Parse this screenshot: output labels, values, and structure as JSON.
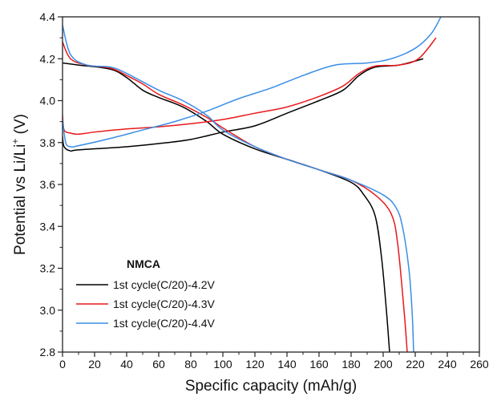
{
  "chart_data": {
    "type": "line",
    "title": "",
    "xlabel": "Specific capacity (mAh/g)",
    "ylabel_main": "Potential vs Li/Li",
    "ylabel_sup": "+",
    "ylabel_unit": " (V)",
    "xlim": [
      0,
      260
    ],
    "ylim": [
      2.8,
      4.4
    ],
    "xticks": [
      0,
      20,
      40,
      60,
      80,
      100,
      120,
      140,
      160,
      180,
      200,
      220,
      240,
      260
    ],
    "yticks": [
      2.8,
      3.0,
      3.2,
      3.4,
      3.6,
      3.8,
      4.0,
      4.2,
      4.4
    ],
    "grid": false,
    "legend": {
      "title": "NMCA",
      "placement": "bottom-left"
    },
    "series": [
      {
        "name": "1st cycle(C/20)-4.2V",
        "color": "#000000",
        "charge": [
          [
            0,
            3.83
          ],
          [
            1,
            3.78
          ],
          [
            5,
            3.76
          ],
          [
            10,
            3.765
          ],
          [
            40,
            3.78
          ],
          [
            60,
            3.795
          ],
          [
            80,
            3.815
          ],
          [
            100,
            3.85
          ],
          [
            120,
            3.88
          ],
          [
            140,
            3.94
          ],
          [
            160,
            4.0
          ],
          [
            175,
            4.05
          ],
          [
            185,
            4.12
          ],
          [
            195,
            4.16
          ],
          [
            210,
            4.17
          ],
          [
            225,
            4.2
          ]
        ],
        "discharge": [
          [
            0,
            4.18
          ],
          [
            10,
            4.17
          ],
          [
            30,
            4.15
          ],
          [
            40,
            4.11
          ],
          [
            50,
            4.05
          ],
          [
            60,
            4.015
          ],
          [
            75,
            3.97
          ],
          [
            90,
            3.9
          ],
          [
            100,
            3.84
          ],
          [
            120,
            3.77
          ],
          [
            140,
            3.72
          ],
          [
            160,
            3.67
          ],
          [
            180,
            3.61
          ],
          [
            188,
            3.55
          ],
          [
            195,
            3.45
          ],
          [
            199,
            3.25
          ],
          [
            202,
            3.0
          ],
          [
            204,
            2.8
          ]
        ]
      },
      {
        "name": "1st cycle(C/20)-4.3V",
        "color": "#e8191c",
        "charge": [
          [
            0,
            3.93
          ],
          [
            1,
            3.86
          ],
          [
            5,
            3.845
          ],
          [
            10,
            3.84
          ],
          [
            20,
            3.85
          ],
          [
            40,
            3.865
          ],
          [
            60,
            3.875
          ],
          [
            80,
            3.89
          ],
          [
            100,
            3.91
          ],
          [
            120,
            3.94
          ],
          [
            140,
            3.97
          ],
          [
            160,
            4.02
          ],
          [
            175,
            4.07
          ],
          [
            185,
            4.13
          ],
          [
            195,
            4.165
          ],
          [
            210,
            4.17
          ],
          [
            222,
            4.2
          ],
          [
            233,
            4.3
          ]
        ],
        "discharge": [
          [
            0,
            4.28
          ],
          [
            5,
            4.2
          ],
          [
            15,
            4.17
          ],
          [
            30,
            4.155
          ],
          [
            40,
            4.12
          ],
          [
            50,
            4.08
          ],
          [
            60,
            4.03
          ],
          [
            75,
            3.98
          ],
          [
            90,
            3.92
          ],
          [
            100,
            3.87
          ],
          [
            120,
            3.78
          ],
          [
            140,
            3.72
          ],
          [
            160,
            3.67
          ],
          [
            180,
            3.62
          ],
          [
            195,
            3.55
          ],
          [
            205,
            3.46
          ],
          [
            209,
            3.32
          ],
          [
            213,
            3.0
          ],
          [
            215,
            2.8
          ]
        ]
      },
      {
        "name": "1st cycle(C/20)-4.4V",
        "color": "#3a8ee6",
        "charge": [
          [
            0,
            3.91
          ],
          [
            2,
            3.8
          ],
          [
            5,
            3.78
          ],
          [
            10,
            3.785
          ],
          [
            30,
            3.82
          ],
          [
            50,
            3.86
          ],
          [
            70,
            3.9
          ],
          [
            90,
            3.95
          ],
          [
            110,
            4.01
          ],
          [
            130,
            4.06
          ],
          [
            150,
            4.12
          ],
          [
            170,
            4.17
          ],
          [
            190,
            4.18
          ],
          [
            205,
            4.2
          ],
          [
            220,
            4.25
          ],
          [
            230,
            4.32
          ],
          [
            236,
            4.4
          ]
        ],
        "discharge": [
          [
            0,
            4.36
          ],
          [
            5,
            4.22
          ],
          [
            15,
            4.17
          ],
          [
            30,
            4.16
          ],
          [
            40,
            4.13
          ],
          [
            60,
            4.05
          ],
          [
            75,
            4.0
          ],
          [
            90,
            3.93
          ],
          [
            100,
            3.86
          ],
          [
            120,
            3.78
          ],
          [
            140,
            3.72
          ],
          [
            160,
            3.67
          ],
          [
            180,
            3.62
          ],
          [
            200,
            3.55
          ],
          [
            208,
            3.49
          ],
          [
            212,
            3.4
          ],
          [
            216,
            3.2
          ],
          [
            218,
            3.0
          ],
          [
            219,
            2.8
          ]
        ]
      }
    ]
  }
}
